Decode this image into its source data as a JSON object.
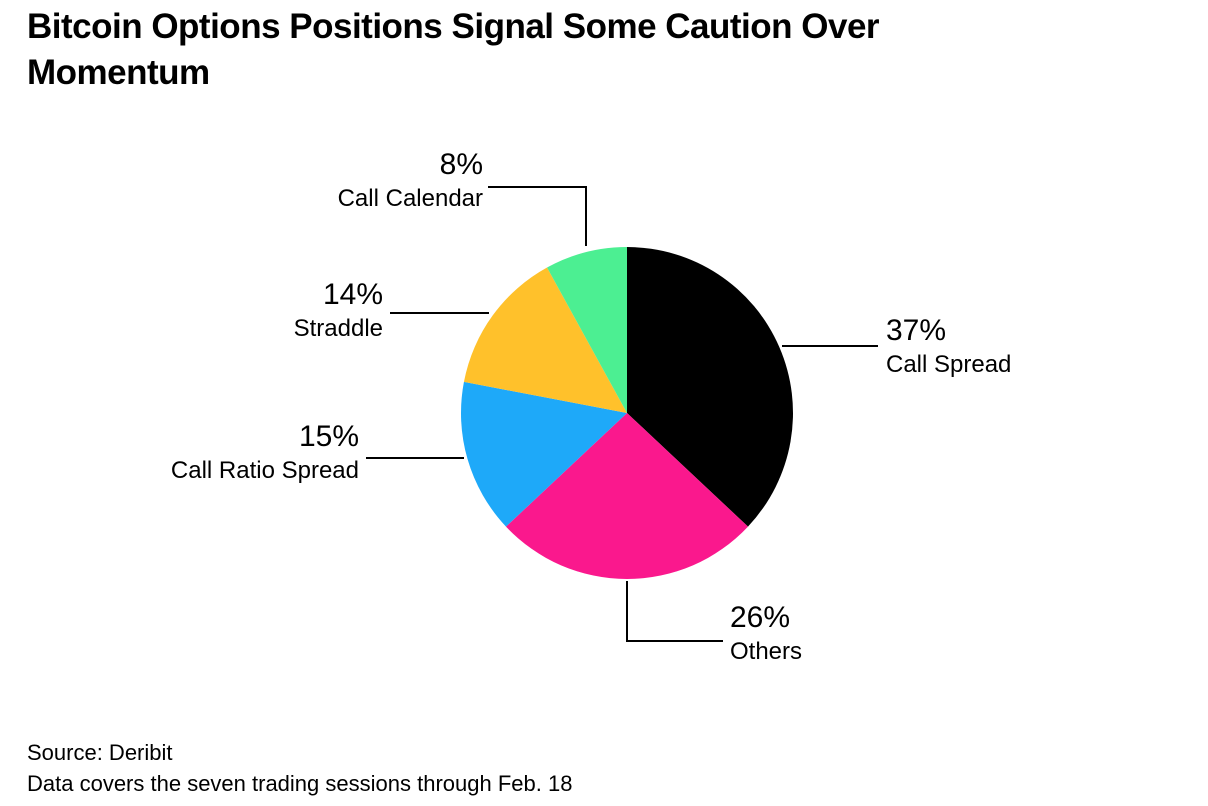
{
  "title": "Bitcoin Options Positions Signal Some Caution Over\nMomentum",
  "source": {
    "line1": "Source: Deribit",
    "line2": "Data covers the seven trading sessions through Feb. 18"
  },
  "chart_data": {
    "type": "pie",
    "title": "Bitcoin Options Positions Signal Some Caution Over Momentum",
    "direction": "clockwise",
    "start_angle_deg": 0,
    "center": [
      627,
      413
    ],
    "radius": 166,
    "slices": [
      {
        "label": "Call Spread",
        "value": 37,
        "pct_label": "37%",
        "color": "#000000"
      },
      {
        "label": "Others",
        "value": 26,
        "pct_label": "26%",
        "color": "#FA188D"
      },
      {
        "label": "Call Ratio Spread",
        "value": 15,
        "pct_label": "15%",
        "color": "#1EA9F9"
      },
      {
        "label": "Straddle",
        "value": 14,
        "pct_label": "14%",
        "color": "#FFC12B"
      },
      {
        "label": "Call Calendar",
        "value": 8,
        "pct_label": "8%",
        "color": "#4CEF92"
      }
    ]
  }
}
